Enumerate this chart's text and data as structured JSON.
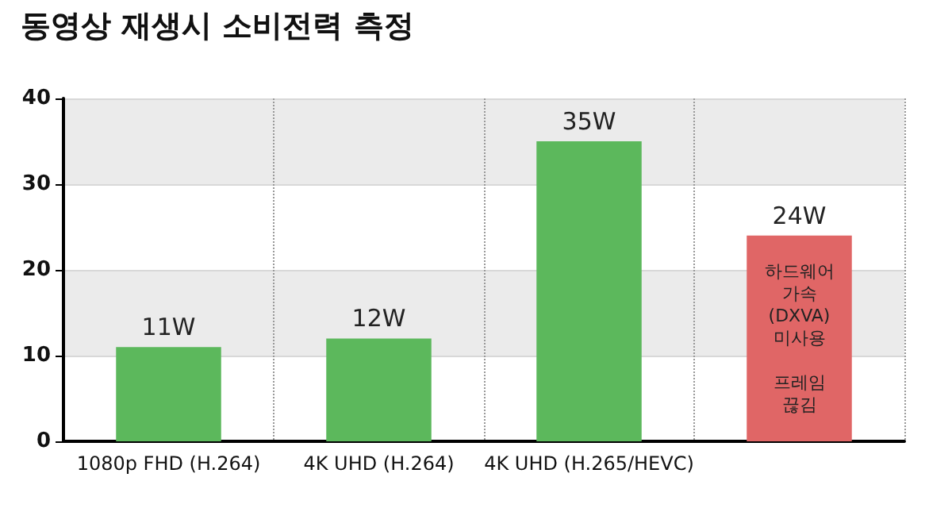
{
  "chart_data": {
    "type": "bar",
    "title": "동영상 재생시 소비전력 측정",
    "categories": [
      "1080p FHD (H.264)",
      "4K UHD (H.264)",
      "4K UHD (H.265/HEVC)",
      null
    ],
    "values": [
      11,
      12,
      35,
      24
    ],
    "colors": [
      "#5cb85c",
      "#5cb85c",
      "#5cb85c",
      "#e06666"
    ],
    "value_labels": [
      "11W",
      "12W",
      "35W",
      "24W"
    ],
    "annotations": [
      "하드웨어\n가속\n(DXVA)\n미사용\n\n프레임\n끊김"
    ],
    "ylim": [
      0,
      40
    ],
    "yticks": [
      0,
      10,
      20,
      30,
      40
    ],
    "grid": "y"
  }
}
